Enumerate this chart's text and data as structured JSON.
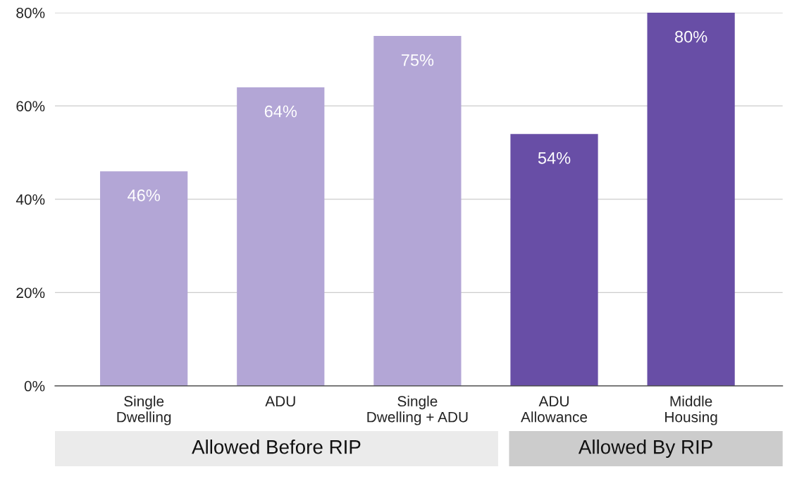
{
  "chart_data": {
    "type": "bar",
    "categories": [
      "Single\nDwelling",
      "ADU",
      "Single\nDwelling + ADU",
      "ADU\nAllowance",
      "Middle\nHousing"
    ],
    "values": [
      46,
      64,
      75,
      54,
      80
    ],
    "value_labels": [
      "46%",
      "64%",
      "75%",
      "54%",
      "80%"
    ],
    "colors": [
      "#b3a6d6",
      "#b3a6d6",
      "#b3a6d6",
      "#684ea6",
      "#684ea6"
    ],
    "ylim": [
      0,
      80
    ],
    "yticks": [
      {
        "value": 0,
        "label": "0%"
      },
      {
        "value": 20,
        "label": "20%"
      },
      {
        "value": 40,
        "label": "40%"
      },
      {
        "value": 60,
        "label": "60%"
      },
      {
        "value": 80,
        "label": "80%"
      }
    ],
    "grid": "y",
    "annotations": [
      "Allowed Before RIP",
      "Allowed By RIP"
    ]
  }
}
